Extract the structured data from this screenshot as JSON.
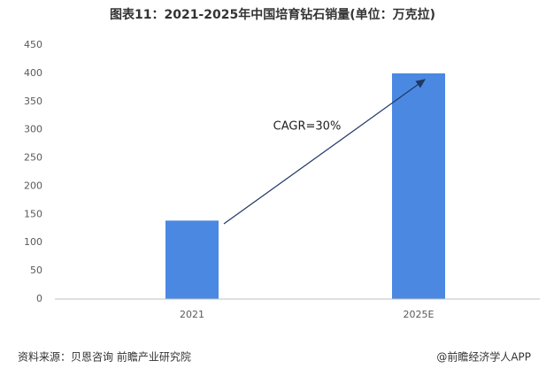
{
  "chart_data": {
    "type": "bar",
    "title": "图表11：2021-2025年中国培育钻石销量(单位：万克拉)",
    "categories": [
      "2021",
      "2025E"
    ],
    "values": [
      139,
      400
    ],
    "color": "#4a88e2",
    "ylim": [
      0,
      450
    ],
    "yticks": [
      0,
      50,
      100,
      150,
      200,
      250,
      300,
      350,
      400,
      450
    ],
    "grid": false,
    "annotation": "CAGR=30%",
    "source": "资料来源：贝恩咨询 前瞻产业研究院",
    "credit": "@前瞻经济学人APP"
  }
}
